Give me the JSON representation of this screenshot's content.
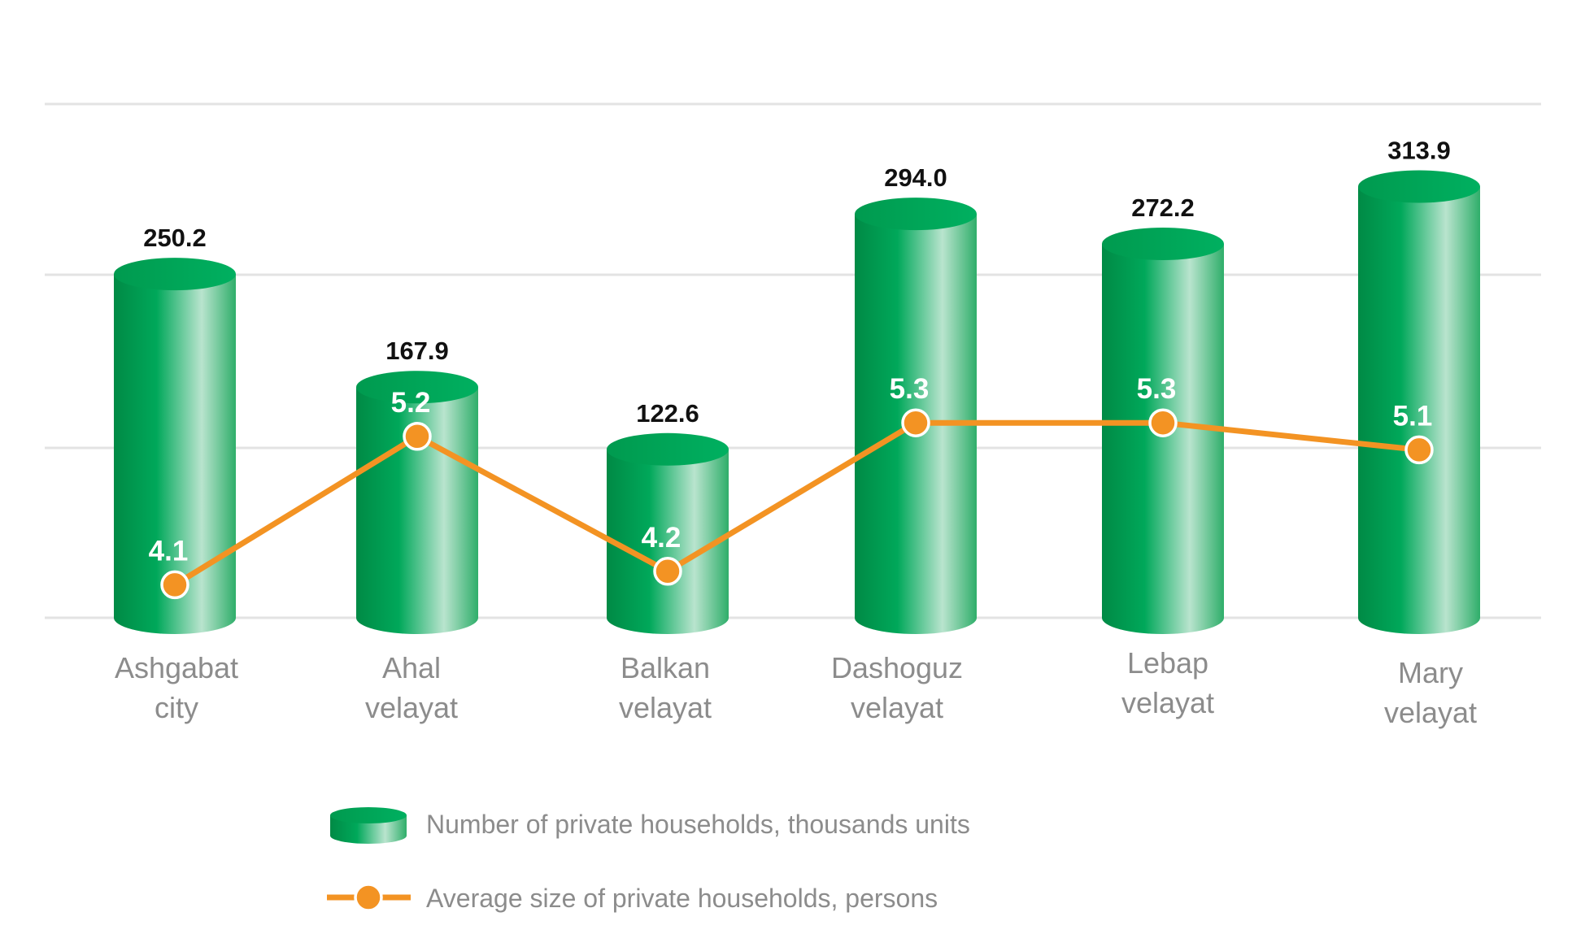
{
  "chart_data": {
    "type": "bar",
    "categories": [
      [
        "Ashgabat",
        "city"
      ],
      [
        "Ahal",
        "velayat"
      ],
      [
        "Balkan",
        "velayat"
      ],
      [
        "Dashoguz",
        "velayat"
      ],
      [
        "Lebap",
        "velayat"
      ],
      [
        "Mary",
        "velayat"
      ]
    ],
    "series": [
      {
        "name": "Number of private households, thousands units",
        "type": "bar",
        "style": "cylinder",
        "values": [
          250.2,
          167.9,
          122.6,
          294.0,
          272.2,
          313.9
        ],
        "labels": [
          "250.2",
          "167.9",
          "122.6",
          "294.0",
          "272.2",
          "313.9"
        ],
        "color": "#00a152"
      },
      {
        "name": "Average size of private households, persons",
        "type": "line",
        "values": [
          4.1,
          5.2,
          4.2,
          5.3,
          5.3,
          5.1
        ],
        "labels": [
          "4.1",
          "5.2",
          "4.2",
          "5.3",
          "5.3",
          "5.1"
        ],
        "color": "#f39323"
      }
    ],
    "grid": true,
    "legend_position": "bottom"
  }
}
